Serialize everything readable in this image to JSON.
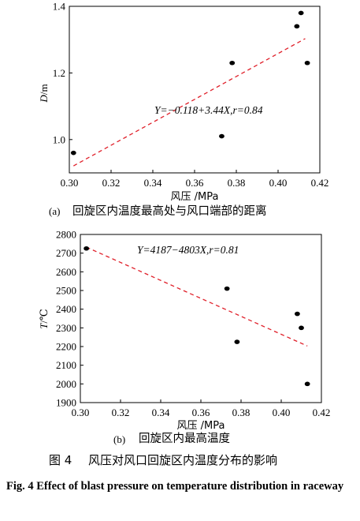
{
  "figure": {
    "title_cn": "风压对风口回旋区内温度分布的影响",
    "label_cn": "图 4",
    "caption_en": "Fig. 4 Effect of blast pressure on temperature distribution in raceway"
  },
  "chart_data": [
    {
      "type": "scatter",
      "panel": "(a)",
      "caption_cn": "回旋区内温度最高处与风口端部的距离",
      "xlabel": "风压 /MPa",
      "ylabel": "D/m",
      "xlim": [
        0.3,
        0.42
      ],
      "ylim": [
        0.9,
        1.4
      ],
      "xticks": [
        "0.30",
        "0.32",
        "0.34",
        "0.36",
        "0.38",
        "0.40",
        "0.42"
      ],
      "yticks": [
        "1.0",
        "1.2",
        "1.4"
      ],
      "points": [
        {
          "x": 0.302,
          "y": 0.96
        },
        {
          "x": 0.373,
          "y": 1.01
        },
        {
          "x": 0.378,
          "y": 1.23
        },
        {
          "x": 0.409,
          "y": 1.34
        },
        {
          "x": 0.411,
          "y": 1.38
        },
        {
          "x": 0.414,
          "y": 1.23
        }
      ],
      "fit": {
        "x": [
          0.302,
          0.413
        ],
        "y": [
          0.921,
          1.303
        ],
        "color": "#e0202a"
      },
      "annotation": "Y=−0.118+3.44X,r=0.84",
      "grid": false
    },
    {
      "type": "scatter",
      "panel": "(b)",
      "caption_cn": "回旋区内最高温度",
      "xlabel": "风压 /MPa",
      "ylabel": "T/℃",
      "xlim": [
        0.3,
        0.42
      ],
      "ylim": [
        1900,
        2800
      ],
      "xticks": [
        "0.30",
        "0.32",
        "0.34",
        "0.36",
        "0.38",
        "0.40",
        "0.42"
      ],
      "yticks": [
        "1900",
        "2000",
        "2100",
        "2200",
        "2300",
        "2400",
        "2500",
        "2600",
        "2700",
        "2800"
      ],
      "points": [
        {
          "x": 0.303,
          "y": 2725
        },
        {
          "x": 0.373,
          "y": 2510
        },
        {
          "x": 0.378,
          "y": 2225
        },
        {
          "x": 0.408,
          "y": 2375
        },
        {
          "x": 0.41,
          "y": 2300
        },
        {
          "x": 0.413,
          "y": 2000
        }
      ],
      "fit": {
        "x": [
          0.303,
          0.413
        ],
        "y": [
          2732,
          2203
        ],
        "color": "#e0202a"
      },
      "annotation": "Y=4187−4803X,r=0.81",
      "grid": false
    }
  ]
}
